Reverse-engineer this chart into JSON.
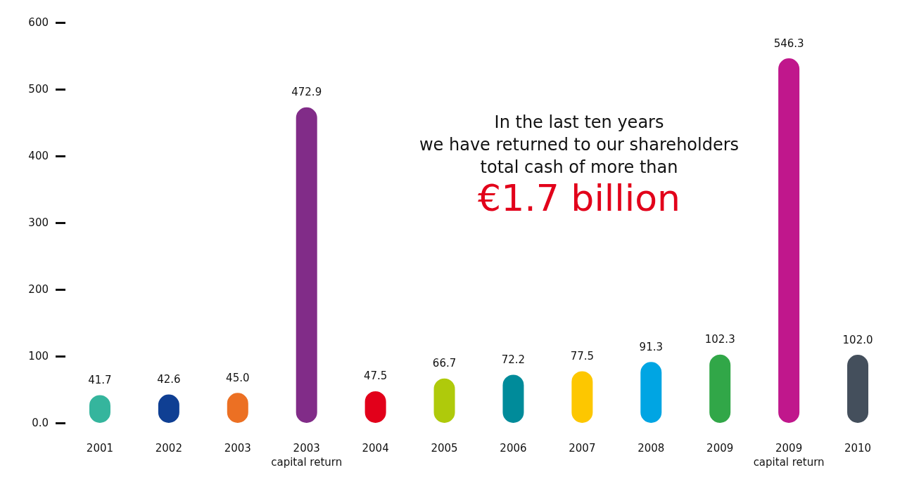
{
  "chart_data": {
    "type": "bar",
    "categories": [
      "2001",
      "2002",
      "2003",
      "2003\ncapital return",
      "2004",
      "2005",
      "2006",
      "2007",
      "2008",
      "2009",
      "2009\ncapital return",
      "2010"
    ],
    "values": [
      41.7,
      42.6,
      45.0,
      472.9,
      47.5,
      66.7,
      72.2,
      77.5,
      91.3,
      102.3,
      546.3,
      102.0
    ],
    "value_labels": [
      "41.7",
      "42.6",
      "45.0",
      "472.9",
      "47.5",
      "66.7",
      "72.2",
      "77.5",
      "91.3",
      "102.3",
      "546.3",
      "102.0"
    ],
    "colors": [
      "#35b59d",
      "#0f3f93",
      "#ec7023",
      "#812c88",
      "#e2001a",
      "#afca0b",
      "#008b9a",
      "#fdc700",
      "#00a5e3",
      "#31a748",
      "#c0178c",
      "#444f5c"
    ],
    "ylim": [
      0,
      600
    ],
    "yticks": [
      {
        "value": 0,
        "label": "0.0"
      },
      100,
      200,
      300,
      400,
      500,
      600
    ],
    "grid": false,
    "annotations": [
      "In the last ten years\nwe have returned to our shareholders\ntotal cash of more than",
      "€1.7 billion"
    ]
  }
}
